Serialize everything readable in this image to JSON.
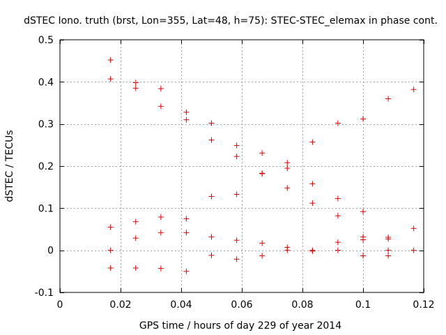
{
  "chart_data": {
    "type": "scatter",
    "title": "dSTEC Iono. truth (brst, Lon=355, Lat=48, h=75): STEC-STEC_elemax in phase cont.",
    "xlabel": "GPS time / hours of day 229 of year 2014",
    "ylabel": "dSTEC  / TECUs",
    "xlim": [
      0,
      0.12
    ],
    "ylim": [
      -0.1,
      0.5
    ],
    "x_ticks": [
      0,
      0.02,
      0.04,
      0.06,
      0.08,
      0.1,
      0.12
    ],
    "x_tick_labels": [
      "0",
      "0.02",
      "0.04",
      "0.06",
      "0.08",
      "0.1",
      "0.12"
    ],
    "y_ticks": [
      -0.1,
      0,
      0.1,
      0.2,
      0.3,
      0.4,
      0.5
    ],
    "y_tick_labels": [
      "-0.1",
      "0",
      "0.1",
      "0.2",
      "0.3",
      "0.4",
      "0.5"
    ],
    "grid": true,
    "marker": "+",
    "color": "#dd0000",
    "series": [
      {
        "name": "dSTEC",
        "points": [
          [
            0.0167,
            0.452
          ],
          [
            0.0167,
            0.407
          ],
          [
            0.0167,
            0.055
          ],
          [
            0.0167,
            0.0
          ],
          [
            0.0167,
            -0.042
          ],
          [
            0.025,
            0.398
          ],
          [
            0.025,
            0.385
          ],
          [
            0.025,
            0.068
          ],
          [
            0.025,
            0.029
          ],
          [
            0.025,
            -0.042
          ],
          [
            0.0333,
            0.384
          ],
          [
            0.0333,
            0.342
          ],
          [
            0.0333,
            0.079
          ],
          [
            0.0333,
            0.042
          ],
          [
            0.0333,
            -0.043
          ],
          [
            0.0417,
            0.328
          ],
          [
            0.0417,
            0.31
          ],
          [
            0.0417,
            0.075
          ],
          [
            0.0417,
            0.042
          ],
          [
            0.0417,
            -0.05
          ],
          [
            0.05,
            0.302
          ],
          [
            0.05,
            0.262
          ],
          [
            0.05,
            0.128
          ],
          [
            0.05,
            0.032
          ],
          [
            0.05,
            -0.012
          ],
          [
            0.0583,
            0.249
          ],
          [
            0.0583,
            0.223
          ],
          [
            0.0583,
            0.133
          ],
          [
            0.0583,
            0.024
          ],
          [
            0.0583,
            -0.021
          ],
          [
            0.0667,
            0.231
          ],
          [
            0.0667,
            0.183
          ],
          [
            0.0667,
            0.182
          ],
          [
            0.0667,
            0.017
          ],
          [
            0.0667,
            -0.013
          ],
          [
            0.075,
            0.208
          ],
          [
            0.075,
            0.195
          ],
          [
            0.075,
            0.148
          ],
          [
            0.075,
            0.007
          ],
          [
            0.075,
            0.0
          ],
          [
            0.0833,
            0.257
          ],
          [
            0.0833,
            0.158
          ],
          [
            0.0833,
            0.112
          ],
          [
            0.0833,
            0.0
          ],
          [
            0.0833,
            -0.002
          ],
          [
            0.0917,
            0.302
          ],
          [
            0.0917,
            0.123
          ],
          [
            0.0917,
            0.082
          ],
          [
            0.0917,
            0.019
          ],
          [
            0.0917,
            0.0
          ],
          [
            0.1,
            0.312
          ],
          [
            0.1,
            0.092
          ],
          [
            0.1,
            0.032
          ],
          [
            0.1,
            0.025
          ],
          [
            0.1,
            -0.013
          ],
          [
            0.1083,
            0.36
          ],
          [
            0.1083,
            0.031
          ],
          [
            0.1083,
            0.027
          ],
          [
            0.1083,
            0.0
          ],
          [
            0.1083,
            -0.013
          ],
          [
            0.1167,
            0.382
          ],
          [
            0.1167,
            0.052
          ],
          [
            0.1167,
            0.0
          ]
        ]
      }
    ]
  }
}
